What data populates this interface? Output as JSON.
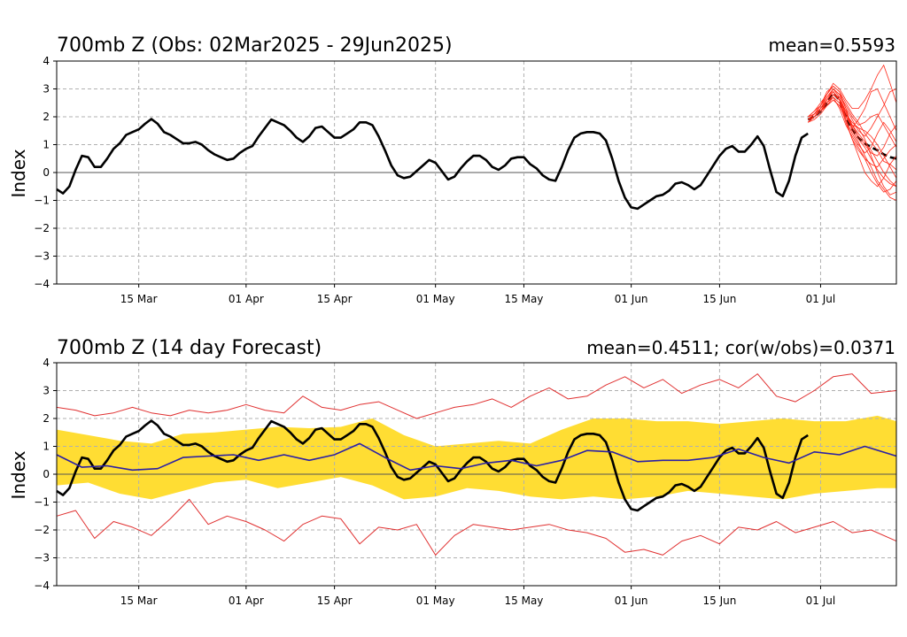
{
  "chart_data": [
    {
      "type": "line",
      "title": "700mb Z (Obs: 02Mar2025 - 29Jun2025)",
      "stat": "mean=0.5593",
      "ylabel": "Index",
      "ylim": [
        -4,
        4
      ],
      "yticks": [
        "4",
        "3",
        "2",
        "1",
        "0",
        "−1",
        "−2",
        "−3",
        "−4"
      ],
      "xticks": [
        "15 Mar",
        "01 Apr",
        "15 Apr",
        "01 May",
        "15 May",
        "01 Jun",
        "15 Jun",
        "01 Jul"
      ],
      "x_range_days": [
        0,
        133
      ],
      "series": [
        {
          "name": "observed",
          "color": "#000000",
          "x": [
            0,
            1,
            2,
            3,
            4,
            5,
            6,
            7,
            8,
            9,
            10,
            11,
            12,
            13,
            14,
            15,
            16,
            17,
            18,
            19,
            20,
            21,
            22,
            23,
            24,
            25,
            26,
            27,
            28,
            29,
            30,
            31,
            32,
            33,
            34,
            35,
            36,
            37,
            38,
            39,
            40,
            41,
            42,
            43,
            44,
            45,
            46,
            47,
            48,
            49,
            50,
            51,
            52,
            53,
            54,
            55,
            56,
            57,
            58,
            59,
            60,
            61,
            62,
            63,
            64,
            65,
            66,
            67,
            68,
            69,
            70,
            71,
            72,
            73,
            74,
            75,
            76,
            77,
            78,
            79,
            80,
            81,
            82,
            83,
            84,
            85,
            86,
            87,
            88,
            89,
            90,
            91,
            92,
            93,
            94,
            95,
            96,
            97,
            98,
            99,
            100,
            101,
            102,
            103,
            104,
            105,
            106,
            107,
            108,
            109,
            110,
            111,
            112,
            113,
            114,
            115,
            116,
            117,
            118,
            119
          ],
          "values": [
            -0.6,
            -0.75,
            -0.5,
            0.1,
            0.6,
            0.55,
            0.2,
            0.2,
            0.5,
            0.85,
            1.05,
            1.35,
            1.45,
            1.55,
            1.75,
            1.92,
            1.75,
            1.45,
            1.35,
            1.2,
            1.05,
            1.05,
            1.1,
            1.0,
            0.8,
            0.65,
            0.55,
            0.45,
            0.5,
            0.7,
            0.85,
            0.95,
            1.3,
            1.6,
            1.9,
            1.8,
            1.7,
            1.5,
            1.25,
            1.1,
            1.3,
            1.6,
            1.65,
            1.45,
            1.25,
            1.25,
            1.4,
            1.55,
            1.8,
            1.8,
            1.7,
            1.3,
            0.8,
            0.25,
            -0.1,
            -0.2,
            -0.15,
            0.05,
            0.25,
            0.45,
            0.35,
            0.05,
            -0.25,
            -0.15,
            0.15,
            0.4,
            0.6,
            0.6,
            0.45,
            0.2,
            0.1,
            0.25,
            0.5,
            0.55,
            0.55,
            0.3,
            0.15,
            -0.1,
            -0.25,
            -0.3,
            0.2,
            0.8,
            1.25,
            1.4,
            1.45,
            1.45,
            1.4,
            1.15,
            0.5,
            -0.3,
            -0.9,
            -1.25,
            -1.3,
            -1.15,
            -1.0,
            -0.85,
            -0.8,
            -0.65,
            -0.4,
            -0.35,
            -0.45,
            -0.6,
            -0.45,
            -0.1,
            0.25,
            0.6,
            0.85,
            0.95,
            0.75,
            0.75,
            1.0,
            1.3,
            0.95,
            0.1,
            -0.7,
            -0.85,
            -0.3,
            0.6,
            1.25,
            1.4
          ]
        },
        {
          "name": "ensemble-mean",
          "color": "#000000",
          "dashed": true,
          "x": [
            119,
            120,
            121,
            122,
            123,
            124,
            125,
            126,
            127,
            128,
            129,
            130,
            131,
            132,
            133
          ],
          "values": [
            1.9,
            2.0,
            2.2,
            2.5,
            2.85,
            2.6,
            2.0,
            1.55,
            1.25,
            1.05,
            0.9,
            0.8,
            0.65,
            0.55,
            0.5
          ]
        },
        {
          "name": "ensemble-members",
          "color": "#ff2a1a",
          "x": [
            119,
            120,
            121,
            122,
            123,
            124,
            125,
            126,
            127,
            128,
            129,
            130,
            131,
            132,
            133
          ],
          "members": [
            [
              1.9,
              2.1,
              2.4,
              2.9,
              3.1,
              2.9,
              2.3,
              1.6,
              1.2,
              0.9,
              0.5,
              0.1,
              -0.2,
              -0.4,
              -0.5
            ],
            [
              1.8,
              2.0,
              2.2,
              2.5,
              2.8,
              2.7,
              2.2,
              1.5,
              1.1,
              0.6,
              0.2,
              -0.3,
              -0.6,
              -0.9,
              -1.0
            ],
            [
              2.0,
              2.2,
              2.5,
              2.8,
              3.2,
              3.0,
              2.6,
              2.3,
              2.3,
              2.6,
              3.0,
              3.5,
              3.85,
              3.2,
              2.5
            ],
            [
              1.9,
              2.1,
              2.3,
              2.6,
              2.9,
              2.6,
              2.0,
              1.6,
              1.9,
              2.3,
              2.9,
              3.0,
              2.5,
              2.0,
              1.5
            ],
            [
              1.8,
              2.0,
              2.2,
              2.6,
              3.0,
              2.8,
              2.3,
              1.9,
              1.5,
              1.3,
              1.6,
              2.0,
              2.4,
              2.9,
              3.0
            ],
            [
              1.9,
              2.0,
              2.2,
              2.4,
              2.7,
              2.5,
              1.8,
              1.2,
              0.8,
              0.5,
              0.3,
              0.2,
              0.5,
              0.8,
              1.0
            ],
            [
              2.0,
              2.1,
              2.3,
              2.7,
              3.0,
              2.7,
              2.1,
              1.7,
              1.6,
              1.5,
              1.3,
              1.0,
              0.6,
              0.2,
              -0.2
            ],
            [
              1.8,
              1.9,
              2.1,
              2.4,
              2.6,
              2.4,
              1.9,
              1.4,
              1.0,
              0.7,
              0.9,
              1.4,
              1.8,
              1.5,
              1.1
            ],
            [
              1.9,
              2.0,
              2.3,
              2.6,
              2.9,
              2.6,
              2.1,
              1.8,
              1.6,
              1.2,
              0.6,
              0.0,
              -0.5,
              -0.8,
              -0.7
            ],
            [
              1.9,
              2.1,
              2.4,
              2.7,
              3.0,
              2.8,
              2.4,
              2.0,
              1.7,
              1.8,
              2.0,
              2.1,
              1.7,
              1.3,
              0.9
            ],
            [
              1.8,
              2.0,
              2.2,
              2.5,
              2.7,
              2.3,
              1.7,
              1.3,
              0.9,
              0.5,
              0.0,
              -0.4,
              -0.7,
              -0.6,
              -0.3
            ],
            [
              2.0,
              2.2,
              2.4,
              2.8,
              3.1,
              2.9,
              2.5,
              2.1,
              1.8,
              1.4,
              1.1,
              0.8,
              0.4,
              0.3,
              0.1
            ],
            [
              1.9,
              2.0,
              2.2,
              2.4,
              2.6,
              2.4,
              2.0,
              1.7,
              1.3,
              1.0,
              0.7,
              0.6,
              0.9,
              1.4,
              1.7
            ],
            [
              1.9,
              2.1,
              2.3,
              2.6,
              2.9,
              2.6,
              1.9,
              1.2,
              0.6,
              0.0,
              -0.3,
              -0.5,
              -0.2,
              0.3,
              0.6
            ],
            [
              1.8,
              2.0,
              2.2,
              2.5,
              2.8,
              2.6,
              2.2,
              1.7,
              1.4,
              1.1,
              0.8,
              0.4,
              0.0,
              -0.3,
              -0.5
            ]
          ]
        }
      ]
    },
    {
      "type": "line",
      "title": "700mb Z (14 day Forecast)",
      "stat": "mean=0.4511; cor(w/obs)=0.0371",
      "ylabel": "Index",
      "ylim": [
        -4,
        4
      ],
      "yticks": [
        "4",
        "3",
        "2",
        "1",
        "0",
        "−1",
        "−2",
        "−3",
        "−4"
      ],
      "xticks": [
        "15 Mar",
        "01 Apr",
        "15 Apr",
        "01 May",
        "15 May",
        "01 Jun",
        "15 Jun",
        "01 Jul"
      ],
      "x_range_days": [
        0,
        133
      ],
      "band": {
        "name": "forecast-spread",
        "color": "#ffdd33",
        "x": [
          0,
          5,
          10,
          15,
          20,
          25,
          30,
          35,
          40,
          45,
          50,
          55,
          60,
          65,
          70,
          75,
          80,
          85,
          90,
          95,
          100,
          105,
          110,
          115,
          120,
          125,
          130,
          133
        ],
        "upper": [
          1.6,
          1.4,
          1.2,
          1.1,
          1.45,
          1.5,
          1.6,
          1.7,
          1.65,
          1.7,
          2.0,
          1.4,
          1.0,
          1.1,
          1.2,
          1.1,
          1.6,
          2.0,
          2.0,
          1.9,
          1.9,
          1.8,
          1.9,
          2.0,
          1.9,
          1.9,
          2.1,
          1.9
        ],
        "lower": [
          -0.4,
          -0.3,
          -0.7,
          -0.9,
          -0.6,
          -0.3,
          -0.2,
          -0.5,
          -0.3,
          -0.1,
          -0.4,
          -0.9,
          -0.8,
          -0.5,
          -0.6,
          -0.8,
          -0.9,
          -0.8,
          -0.9,
          -0.8,
          -0.6,
          -0.7,
          -0.8,
          -0.9,
          -0.7,
          -0.6,
          -0.5,
          -0.5
        ]
      },
      "series": [
        {
          "name": "obs",
          "color": "#000000",
          "same_as": "chart_data.0.series.0"
        },
        {
          "name": "forecast-mean",
          "color": "#2a1fa6",
          "x": [
            0,
            4,
            8,
            12,
            16,
            20,
            24,
            28,
            32,
            36,
            40,
            44,
            48,
            52,
            56,
            60,
            64,
            68,
            72,
            76,
            80,
            84,
            88,
            92,
            96,
            100,
            104,
            108,
            112,
            116,
            120,
            124,
            128,
            133
          ],
          "values": [
            0.7,
            0.25,
            0.3,
            0.15,
            0.2,
            0.6,
            0.65,
            0.7,
            0.5,
            0.7,
            0.5,
            0.7,
            1.1,
            0.6,
            0.15,
            0.3,
            0.2,
            0.4,
            0.5,
            0.3,
            0.5,
            0.85,
            0.8,
            0.45,
            0.5,
            0.5,
            0.6,
            0.9,
            0.6,
            0.4,
            0.8,
            0.7,
            1.0,
            0.65
          ]
        },
        {
          "name": "forecast-max",
          "color": "#e03030",
          "x": [
            0,
            3,
            6,
            9,
            12,
            15,
            18,
            21,
            24,
            27,
            30,
            33,
            36,
            39,
            42,
            45,
            48,
            51,
            54,
            57,
            60,
            63,
            66,
            69,
            72,
            75,
            78,
            81,
            84,
            87,
            90,
            93,
            96,
            99,
            102,
            105,
            108,
            111,
            114,
            117,
            120,
            123,
            126,
            129,
            133
          ],
          "values": [
            2.4,
            2.3,
            2.1,
            2.2,
            2.4,
            2.2,
            2.1,
            2.3,
            2.2,
            2.3,
            2.5,
            2.3,
            2.2,
            2.8,
            2.4,
            2.3,
            2.5,
            2.6,
            2.3,
            2.0,
            2.2,
            2.4,
            2.5,
            2.7,
            2.4,
            2.8,
            3.1,
            2.7,
            2.8,
            3.2,
            3.5,
            3.1,
            3.4,
            2.9,
            3.2,
            3.4,
            3.1,
            3.6,
            2.8,
            2.6,
            3.0,
            3.5,
            3.6,
            2.9,
            3.0
          ]
        },
        {
          "name": "forecast-min",
          "color": "#e03030",
          "x": [
            0,
            3,
            6,
            9,
            12,
            15,
            18,
            21,
            24,
            27,
            30,
            33,
            36,
            39,
            42,
            45,
            48,
            51,
            54,
            57,
            60,
            63,
            66,
            69,
            72,
            75,
            78,
            81,
            84,
            87,
            90,
            93,
            96,
            99,
            102,
            105,
            108,
            111,
            114,
            117,
            120,
            123,
            126,
            129,
            133
          ],
          "values": [
            -1.5,
            -1.3,
            -2.3,
            -1.7,
            -1.9,
            -2.2,
            -1.6,
            -0.9,
            -1.8,
            -1.5,
            -1.7,
            -2.0,
            -2.4,
            -1.8,
            -1.5,
            -1.6,
            -2.5,
            -1.9,
            -2.0,
            -1.8,
            -2.9,
            -2.2,
            -1.8,
            -1.9,
            -2.0,
            -1.9,
            -1.8,
            -2.0,
            -2.1,
            -2.3,
            -2.8,
            -2.7,
            -2.9,
            -2.4,
            -2.2,
            -2.5,
            -1.9,
            -2.0,
            -1.7,
            -2.1,
            -1.9,
            -1.7,
            -2.1,
            -2.0,
            -2.4
          ]
        }
      ]
    }
  ]
}
